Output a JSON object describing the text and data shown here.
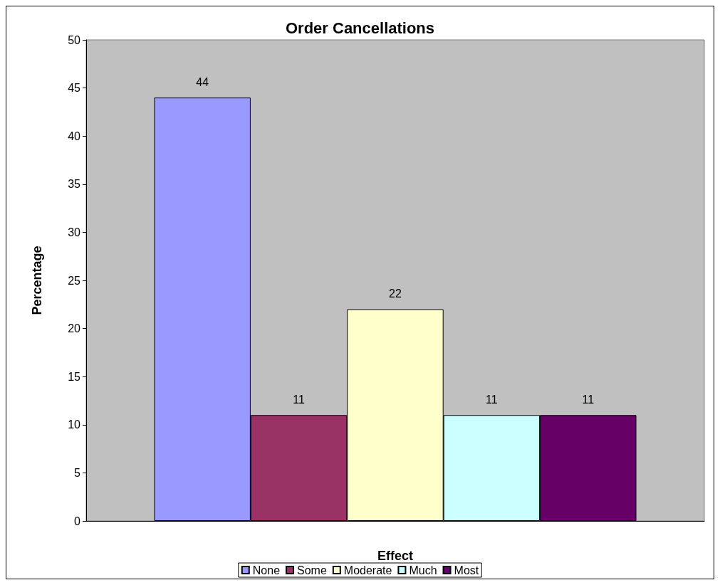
{
  "chart_data": {
    "type": "bar",
    "title": "Order Cancellations",
    "xlabel": "Effect",
    "ylabel": "Percentage",
    "categories": [
      null
    ],
    "series": [
      {
        "name": "None",
        "color": "#9999ff",
        "values": [
          44
        ]
      },
      {
        "name": "Some",
        "color": "#993366",
        "values": [
          11
        ]
      },
      {
        "name": "Moderate",
        "color": "#ffffcc",
        "values": [
          22
        ]
      },
      {
        "name": "Much",
        "color": "#ccffff",
        "values": [
          11
        ]
      },
      {
        "name": "Most",
        "color": "#660066",
        "values": [
          11
        ]
      }
    ],
    "ylim": [
      0,
      50
    ],
    "yticks": [
      0,
      5,
      10,
      15,
      20,
      25,
      30,
      35,
      40,
      45,
      50
    ],
    "data_labels": true,
    "grid": false,
    "legend": "bottom"
  }
}
